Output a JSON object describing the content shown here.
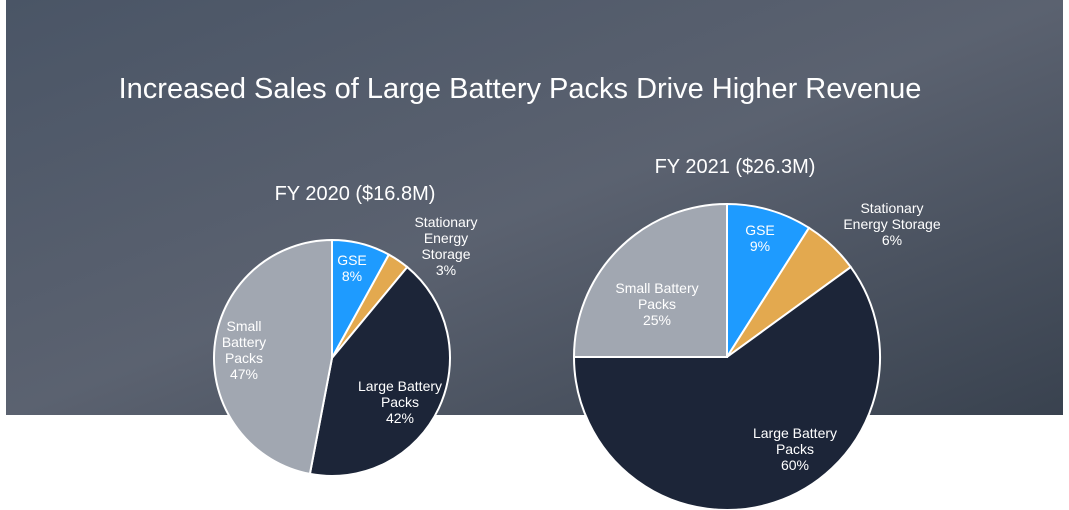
{
  "title": "Increased Sales of Large Battery Packs Drive Higher Revenue",
  "chart_data": [
    {
      "type": "pie",
      "title": "FY 2020 ($16.8M)",
      "categories": [
        "GSE",
        "Stationary Energy Storage",
        "Large Battery Packs",
        "Small Battery Packs"
      ],
      "values": [
        8,
        3,
        42,
        47
      ],
      "value_labels": [
        "8%",
        "3%",
        "42%",
        "47%"
      ],
      "colors": [
        "#1e9bff",
        "#e3a94f",
        "#1c2538",
        "#a1a7b1"
      ]
    },
    {
      "type": "pie",
      "title": "FY 2021 ($26.3M)",
      "categories": [
        "GSE",
        "Stationary Energy Storage",
        "Large Battery Packs",
        "Small Battery Packs"
      ],
      "values": [
        9,
        6,
        60,
        25
      ],
      "value_labels": [
        "9%",
        "6%",
        "60%",
        "25%"
      ],
      "colors": [
        "#1e9bff",
        "#e3a94f",
        "#1c2538",
        "#a1a7b1"
      ]
    }
  ]
}
